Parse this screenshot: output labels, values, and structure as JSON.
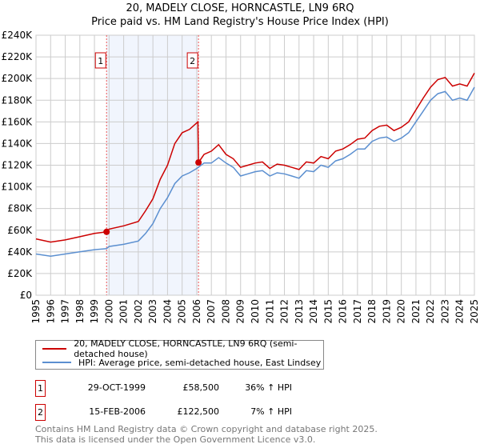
{
  "title_line1": "20, MADELY CLOSE, HORNCASTLE, LN9 6RQ",
  "title_line2": "Price paid vs. HM Land Registry's House Price Index (HPI)",
  "chart_data": {
    "type": "line",
    "title": "20, MADELY CLOSE, HORNCASTLE, LN9 6RQ — Price paid vs. HM Land Registry's House Price Index (HPI)",
    "xlim": [
      1995,
      2025
    ],
    "ylim": [
      0,
      240000
    ],
    "x_ticks": [
      "1995",
      "1996",
      "1997",
      "1998",
      "1999",
      "2000",
      "2001",
      "2002",
      "2003",
      "2004",
      "2005",
      "2006",
      "2007",
      "2008",
      "2009",
      "2010",
      "2011",
      "2012",
      "2013",
      "2014",
      "2015",
      "2016",
      "2017",
      "2018",
      "2019",
      "2020",
      "2021",
      "2022",
      "2023",
      "2024",
      "2025"
    ],
    "y_ticks": [
      {
        "v": 0,
        "label": "£0"
      },
      {
        "v": 20000,
        "label": "£20K"
      },
      {
        "v": 40000,
        "label": "£40K"
      },
      {
        "v": 60000,
        "label": "£60K"
      },
      {
        "v": 80000,
        "label": "£80K"
      },
      {
        "v": 100000,
        "label": "£100K"
      },
      {
        "v": 120000,
        "label": "£120K"
      },
      {
        "v": 140000,
        "label": "£140K"
      },
      {
        "v": 160000,
        "label": "£160K"
      },
      {
        "v": 180000,
        "label": "£180K"
      },
      {
        "v": 200000,
        "label": "£200K"
      },
      {
        "v": 220000,
        "label": "£220K"
      },
      {
        "v": 240000,
        "label": "£240K"
      }
    ],
    "grid": true,
    "shaded_range": [
      1999.83,
      2006.12
    ],
    "series": [
      {
        "name": "20, MADELY CLOSE, HORNCASTLE, LN9 6RQ (semi-detached house)",
        "color": "#cc0000",
        "x": [
          1995,
          1996,
          1997,
          1998,
          1999,
          1999.83,
          2000,
          2001,
          2002,
          2002.5,
          2003,
          2003.5,
          2004,
          2004.5,
          2005,
          2005.5,
          2006.08,
          2006.12,
          2006.5,
          2007,
          2007.5,
          2008,
          2008.5,
          2009,
          2009.5,
          2010,
          2010.5,
          2011,
          2011.5,
          2012,
          2012.5,
          2013,
          2013.5,
          2014,
          2014.5,
          2015,
          2015.5,
          2016,
          2016.5,
          2017,
          2017.5,
          2018,
          2018.5,
          2019,
          2019.5,
          2020,
          2020.5,
          2021,
          2021.5,
          2022,
          2022.5,
          2023,
          2023.5,
          2024,
          2024.5,
          2025
        ],
        "y": [
          52000,
          49000,
          51000,
          54000,
          57000,
          58500,
          61000,
          64000,
          68000,
          78000,
          89000,
          107000,
          120000,
          140000,
          150000,
          153000,
          160000,
          122500,
          130000,
          133000,
          139000,
          130000,
          126000,
          118000,
          120000,
          122000,
          123000,
          117000,
          121000,
          120000,
          118000,
          116000,
          123000,
          122000,
          128000,
          126000,
          133000,
          135000,
          139000,
          144000,
          145000,
          152000,
          156000,
          157000,
          152000,
          155000,
          160000,
          171000,
          182000,
          192000,
          199000,
          201000,
          193000,
          195000,
          193000,
          205000
        ]
      },
      {
        "name": "HPI: Average price, semi-detached house, East Lindsey",
        "color": "#5b8fd0",
        "x": [
          1995,
          1996,
          1997,
          1998,
          1999,
          1999.83,
          2000,
          2001,
          2002,
          2002.5,
          2003,
          2003.5,
          2004,
          2004.5,
          2005,
          2005.5,
          2006,
          2006.5,
          2007,
          2007.5,
          2008,
          2008.5,
          2009,
          2009.5,
          2010,
          2010.5,
          2011,
          2011.5,
          2012,
          2012.5,
          2013,
          2013.5,
          2014,
          2014.5,
          2015,
          2015.5,
          2016,
          2016.5,
          2017,
          2017.5,
          2018,
          2018.5,
          2019,
          2019.5,
          2020,
          2020.5,
          2021,
          2021.5,
          2022,
          2022.5,
          2023,
          2023.5,
          2024,
          2024.5,
          2025
        ],
        "y": [
          38000,
          36000,
          38000,
          40000,
          42000,
          43000,
          45000,
          47000,
          50000,
          57000,
          66000,
          80000,
          90000,
          103000,
          110000,
          113000,
          117000,
          122000,
          122000,
          127000,
          122000,
          118000,
          110000,
          112000,
          114000,
          115000,
          110000,
          113000,
          112000,
          110000,
          108000,
          115000,
          114000,
          120000,
          118000,
          124000,
          126000,
          130000,
          135000,
          135000,
          142000,
          145000,
          146000,
          142000,
          145000,
          150000,
          160000,
          170000,
          180000,
          186000,
          188000,
          180000,
          182000,
          180000,
          192000
        ]
      }
    ],
    "sales": [
      {
        "label": "1",
        "x": 1999.83,
        "y": 58500
      },
      {
        "label": "2",
        "x": 2006.12,
        "y": 122500
      }
    ]
  },
  "legend": {
    "property": "20, MADELY CLOSE, HORNCASTLE, LN9 6RQ (semi-detached house)",
    "hpi": "HPI: Average price, semi-detached house, East Lindsey"
  },
  "transactions": [
    {
      "num": "1",
      "date": "29-OCT-1999",
      "price": "£58,500",
      "hpi": "36% ↑ HPI"
    },
    {
      "num": "2",
      "date": "15-FEB-2006",
      "price": "£122,500",
      "hpi": "7% ↑ HPI"
    }
  ],
  "footer": {
    "line1": "Contains HM Land Registry data © Crown copyright and database right 2025.",
    "line2": "This data is licensed under the Open Government Licence v3.0."
  }
}
